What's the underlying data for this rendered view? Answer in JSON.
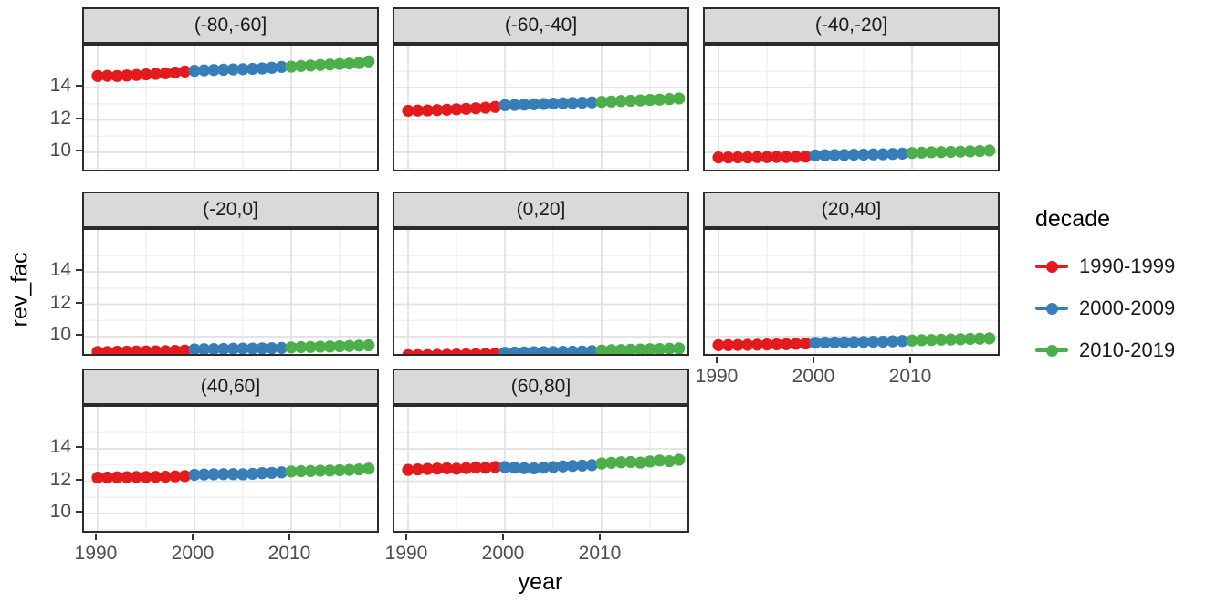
{
  "figure": {
    "x_axis_title": "year",
    "y_axis_title": "rev_fac",
    "y_tick_labels": [
      "14",
      "12",
      "10"
    ],
    "x_tick_labels": [
      "1990",
      "2000",
      "2010"
    ]
  },
  "legend": {
    "title": "decade",
    "entries": [
      {
        "label": "1990-1999",
        "color": "#E41A1C"
      },
      {
        "label": "2000-2009",
        "color": "#377EB8"
      },
      {
        "label": "2010-2019",
        "color": "#4DAF4A"
      }
    ]
  },
  "chart_data": {
    "type": "scatter",
    "geom": [
      "line",
      "point"
    ],
    "title": "",
    "xlabel": "year",
    "ylabel": "rev_fac",
    "legend_title": "decade",
    "legend_position": "right",
    "grid": "on",
    "x_ticks": [
      1990,
      2000,
      2010
    ],
    "y_ticks": [
      14,
      12,
      10
    ],
    "x_minor_breaks": [
      1995,
      2005,
      2015
    ],
    "y_minor_breaks": [
      9,
      11,
      13,
      15
    ],
    "xlim": [
      1988.6,
      2019.4
    ],
    "ylim": [
      8.7,
      16.6
    ],
    "years": [
      1990,
      1991,
      1992,
      1993,
      1994,
      1995,
      1996,
      1997,
      1998,
      1999,
      2000,
      2001,
      2002,
      2003,
      2004,
      2005,
      2006,
      2007,
      2008,
      2009,
      2010,
      2011,
      2012,
      2013,
      2014,
      2015,
      2016,
      2017,
      2018
    ],
    "series_by": "decade",
    "decades": [
      "1990-1999",
      "2000-2009",
      "2010-2019"
    ],
    "facets": [
      {
        "label": "(-80,-60]",
        "values": [
          14.72,
          14.73,
          14.72,
          14.75,
          14.78,
          14.82,
          14.85,
          14.89,
          14.94,
          15.0,
          15.04,
          15.07,
          15.09,
          15.11,
          15.13,
          15.14,
          15.16,
          15.19,
          15.23,
          15.28,
          15.3,
          15.34,
          15.37,
          15.4,
          15.43,
          15.46,
          15.49,
          15.52,
          15.63
        ]
      },
      {
        "label": "(-60,-40]",
        "values": [
          12.57,
          12.58,
          12.59,
          12.61,
          12.63,
          12.66,
          12.69,
          12.72,
          12.76,
          12.81,
          12.91,
          12.93,
          12.95,
          12.97,
          12.99,
          13.01,
          13.03,
          13.05,
          13.07,
          13.09,
          13.12,
          13.14,
          13.17,
          13.19,
          13.21,
          13.24,
          13.26,
          13.29,
          13.33
        ]
      },
      {
        "label": "(-40,-20]",
        "values": [
          9.68,
          9.68,
          9.69,
          9.69,
          9.7,
          9.7,
          9.71,
          9.71,
          9.72,
          9.73,
          9.81,
          9.82,
          9.83,
          9.84,
          9.85,
          9.86,
          9.87,
          9.88,
          9.9,
          9.92,
          9.96,
          9.98,
          10.0,
          10.01,
          10.03,
          10.04,
          10.06,
          10.08,
          10.11
        ]
      },
      {
        "label": "(-20,0]",
        "values": [
          9.05,
          9.05,
          9.06,
          9.07,
          9.08,
          9.08,
          9.09,
          9.1,
          9.12,
          9.14,
          9.21,
          9.22,
          9.23,
          9.24,
          9.25,
          9.26,
          9.26,
          9.27,
          9.28,
          9.3,
          9.33,
          9.35,
          9.36,
          9.38,
          9.39,
          9.41,
          9.42,
          9.44,
          9.46
        ]
      },
      {
        "label": "(0,20]",
        "values": [
          8.85,
          8.85,
          8.86,
          8.87,
          8.88,
          8.89,
          8.9,
          8.91,
          8.93,
          8.95,
          9.0,
          9.01,
          9.02,
          9.03,
          9.04,
          9.05,
          9.06,
          9.07,
          9.08,
          9.1,
          9.14,
          9.16,
          9.17,
          9.19,
          9.2,
          9.22,
          9.23,
          9.25,
          9.27
        ]
      },
      {
        "label": "(20,40]",
        "values": [
          9.47,
          9.47,
          9.48,
          9.49,
          9.5,
          9.51,
          9.52,
          9.53,
          9.55,
          9.57,
          9.62,
          9.63,
          9.64,
          9.65,
          9.66,
          9.67,
          9.68,
          9.69,
          9.71,
          9.73,
          9.76,
          9.78,
          9.79,
          9.81,
          9.82,
          9.84,
          9.86,
          9.87,
          9.89
        ]
      },
      {
        "label": "(40,60]",
        "values": [
          12.22,
          12.23,
          12.24,
          12.25,
          12.26,
          12.26,
          12.27,
          12.28,
          12.3,
          12.32,
          12.4,
          12.42,
          12.43,
          12.44,
          12.44,
          12.43,
          12.46,
          12.5,
          12.52,
          12.55,
          12.6,
          12.62,
          12.63,
          12.65,
          12.66,
          12.68,
          12.7,
          12.73,
          12.78
        ]
      },
      {
        "label": "(60,80]",
        "values": [
          12.7,
          12.73,
          12.76,
          12.78,
          12.8,
          12.77,
          12.81,
          12.85,
          12.83,
          12.88,
          12.88,
          12.84,
          12.81,
          12.79,
          12.84,
          12.88,
          12.92,
          12.95,
          12.97,
          13.0,
          13.1,
          13.14,
          13.17,
          13.19,
          13.15,
          13.22,
          13.28,
          13.24,
          13.33
        ]
      }
    ]
  }
}
